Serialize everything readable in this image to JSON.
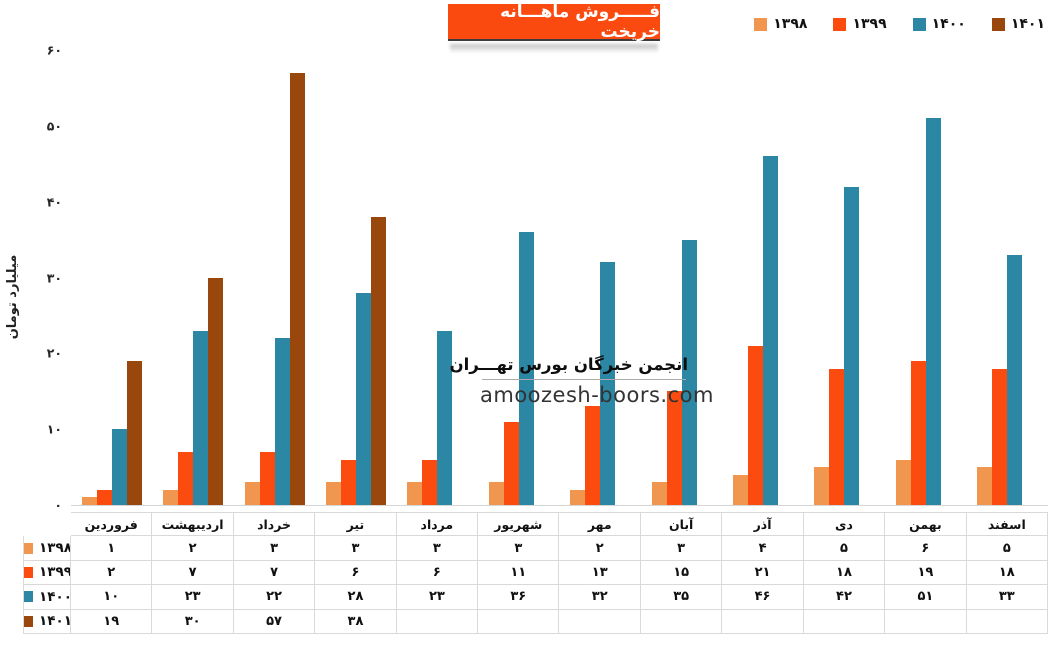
{
  "title": {
    "text": "فـــــروش ماهـــانه خریخت",
    "bg_color": "#FB4A0F",
    "text_color": "#FFFFFF"
  },
  "legend": {
    "items": [
      {
        "label": "۱۳۹۸",
        "color": "#F0964F"
      },
      {
        "label": "۱۳۹۹",
        "color": "#FC4B0E"
      },
      {
        "label": "۱۴۰۰",
        "color": "#2B87A3"
      },
      {
        "label": "۱۴۰۱",
        "color": "#9A470E"
      }
    ]
  },
  "y_axis": {
    "title": "میلیارد تومان",
    "tick_values": [
      0,
      10,
      20,
      30,
      40,
      50,
      60
    ],
    "ticks_fa": [
      "۰",
      "۱۰",
      "۲۰",
      "۳۰",
      "۴۰",
      "۵۰",
      "۶۰"
    ],
    "max": 60
  },
  "months": [
    "فروردین",
    "اردیبهشت",
    "خرداد",
    "تیر",
    "مرداد",
    "شهریور",
    "مهر",
    "آبان",
    "آذر",
    "دی",
    "بهمن",
    "اسفند"
  ],
  "watermark": {
    "line1": "انجمن خبرگان بورس تهـــران",
    "line2": "amoozesh-boors.com"
  },
  "chart_data": {
    "type": "bar",
    "title": "فـــــروش ماهـــانه خریخت",
    "xlabel": "",
    "ylabel": "میلیارد تومان",
    "ylim": [
      0,
      60
    ],
    "grid": false,
    "legend_position": "top-right",
    "data_table_shown": true,
    "categories": [
      "فروردین",
      "اردیبهشت",
      "خرداد",
      "تیر",
      "مرداد",
      "شهریور",
      "مهر",
      "آبان",
      "آذر",
      "دی",
      "بهمن",
      "اسفند"
    ],
    "series": [
      {
        "name": "۱۳۹۸",
        "color": "#F0964F",
        "values": [
          1,
          2,
          3,
          3,
          3,
          3,
          2,
          3,
          4,
          5,
          6,
          5
        ],
        "values_fa": [
          "۱",
          "۲",
          "۳",
          "۳",
          "۳",
          "۳",
          "۲",
          "۳",
          "۴",
          "۵",
          "۶",
          "۵"
        ]
      },
      {
        "name": "۱۳۹۹",
        "color": "#FC4B0E",
        "values": [
          2,
          7,
          7,
          6,
          6,
          11,
          13,
          15,
          21,
          18,
          19,
          18
        ],
        "values_fa": [
          "۲",
          "۷",
          "۷",
          "۶",
          "۶",
          "۱۱",
          "۱۳",
          "۱۵",
          "۲۱",
          "۱۸",
          "۱۹",
          "۱۸"
        ]
      },
      {
        "name": "۱۴۰۰",
        "color": "#2B87A3",
        "values": [
          10,
          23,
          22,
          28,
          23,
          36,
          32,
          35,
          46,
          42,
          51,
          33
        ],
        "values_fa": [
          "۱۰",
          "۲۳",
          "۲۲",
          "۲۸",
          "۲۳",
          "۳۶",
          "۳۲",
          "۳۵",
          "۴۶",
          "۴۲",
          "۵۱",
          "۳۳"
        ]
      },
      {
        "name": "۱۴۰۱",
        "color": "#9A470E",
        "values": [
          19,
          30,
          57,
          38,
          null,
          null,
          null,
          null,
          null,
          null,
          null,
          null
        ],
        "values_fa": [
          "۱۹",
          "۳۰",
          "۵۷",
          "۳۸",
          "",
          "",
          "",
          "",
          "",
          "",
          "",
          ""
        ]
      }
    ]
  }
}
